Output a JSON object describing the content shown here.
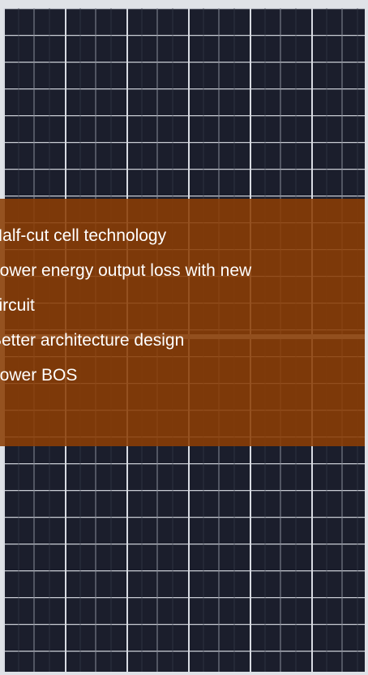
{
  "overlay": {
    "lines": [
      "Half-cut cell technology",
      "Lower energy output loss with new",
      "circuit",
      "Better architecture design",
      "Lower BOS"
    ]
  }
}
